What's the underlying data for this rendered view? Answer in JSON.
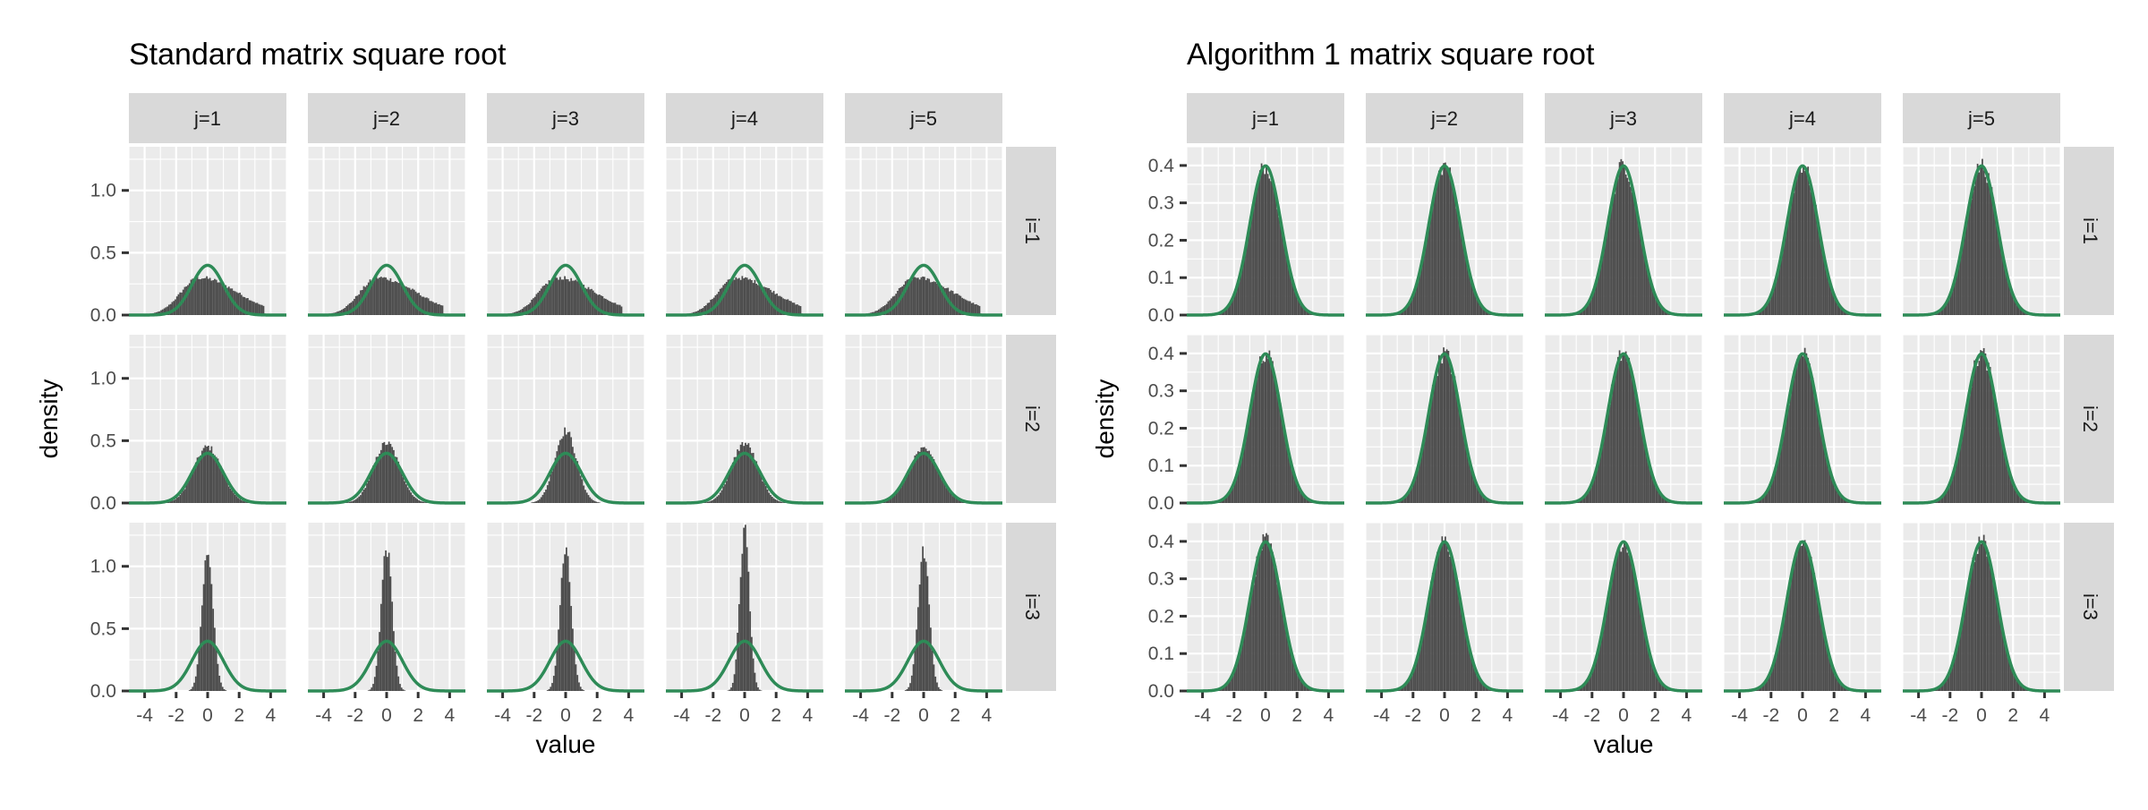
{
  "chart_data": [
    {
      "type": "histogram",
      "title": "Standard matrix square root",
      "xlabel": "value",
      "ylabel": "density",
      "facet_cols": [
        "j=1",
        "j=2",
        "j=3",
        "j=4",
        "j=5"
      ],
      "facet_rows": [
        "i=1",
        "i=2",
        "i=3"
      ],
      "xlim": [
        -5,
        5
      ],
      "ylim": [
        0,
        1.35
      ],
      "xticks": [
        -4,
        -2,
        0,
        2,
        4
      ],
      "xtick_labels": [
        "-4",
        "-2",
        "0",
        "2",
        "4"
      ],
      "yticks": [
        0,
        0.5,
        1.0
      ],
      "ytick_labels": [
        "0.0",
        "0.5",
        "1.0"
      ],
      "reference_curve": {
        "distribution": "standard normal",
        "mean": 0,
        "sd": 1,
        "color": "#2e8b57"
      },
      "histogram_color": "#4d4d4d",
      "panel_background": "#ebebeb",
      "strip_background": "#d9d9d9",
      "grid": true,
      "row_shapes": [
        {
          "row": "i=1",
          "shape": "right-skewed",
          "peak_location": -0.5,
          "peak_density": 0.3,
          "spread_left": 1.2,
          "spread_right": 2.4
        },
        {
          "row": "i=2",
          "shape": "approximately normal",
          "peak_location": 0,
          "peak_density": [
            0.45,
            0.48,
            0.58,
            0.48,
            0.43
          ]
        },
        {
          "row": "i=3",
          "shape": "sharply peaked",
          "peak_location": 0,
          "peak_density": [
            1.12,
            1.15,
            1.12,
            1.3,
            1.12
          ]
        }
      ]
    },
    {
      "type": "histogram",
      "title": "Algorithm 1 matrix square root",
      "xlabel": "value",
      "ylabel": "density",
      "facet_cols": [
        "j=1",
        "j=2",
        "j=3",
        "j=4",
        "j=5"
      ],
      "facet_rows": [
        "i=1",
        "i=2",
        "i=3"
      ],
      "xlim": [
        -5,
        5
      ],
      "ylim": [
        0,
        0.45
      ],
      "xticks": [
        -4,
        -2,
        0,
        2,
        4
      ],
      "xtick_labels": [
        "-4",
        "-2",
        "0",
        "2",
        "4"
      ],
      "yticks": [
        0,
        0.1,
        0.2,
        0.3,
        0.4
      ],
      "ytick_labels": [
        "0.0",
        "0.1",
        "0.2",
        "0.3",
        "0.4"
      ],
      "reference_curve": {
        "distribution": "standard normal",
        "mean": 0,
        "sd": 1,
        "color": "#2e8b57"
      },
      "histogram_color": "#4d4d4d",
      "panel_background": "#ebebeb",
      "strip_background": "#d9d9d9",
      "grid": true,
      "row_shapes": [
        {
          "row": "i=1",
          "shape": "standard normal",
          "peak_location": 0,
          "peak_density": 0.4
        },
        {
          "row": "i=2",
          "shape": "standard normal",
          "peak_location": 0,
          "peak_density": 0.4
        },
        {
          "row": "i=3",
          "shape": "standard normal",
          "peak_location": 0,
          "peak_density": 0.4
        }
      ]
    }
  ]
}
